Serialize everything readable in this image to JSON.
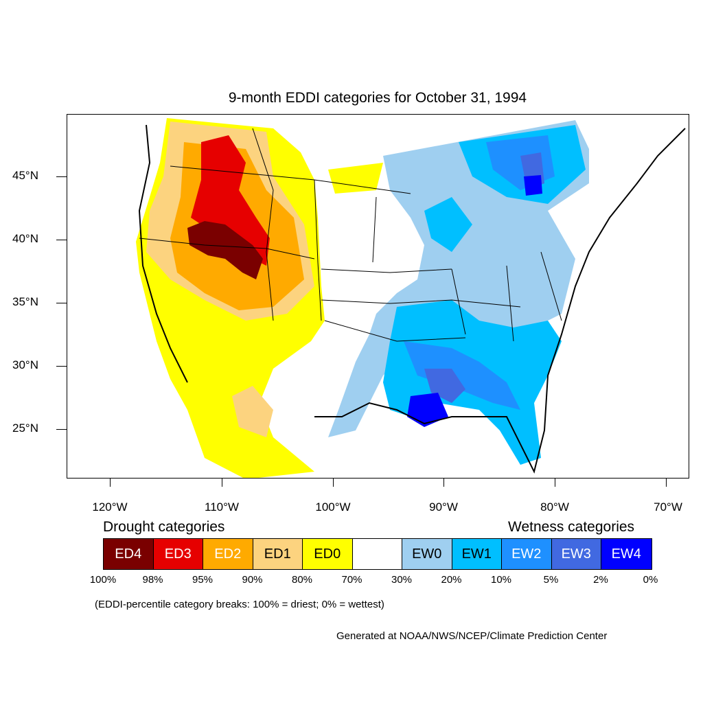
{
  "title": "9-month EDDI categories for October 31, 1994",
  "lat_labels": [
    "45°N",
    "40°N",
    "35°N",
    "30°N",
    "25°N"
  ],
  "lon_labels": [
    "120°W",
    "110°W",
    "100°W",
    "90°W",
    "80°W",
    "70°W"
  ],
  "legend": {
    "drought_heading": "Drought categories",
    "wetness_heading": "Wetness categories",
    "categories": [
      {
        "label": "ED4",
        "color": "#7a0000",
        "text_color": "#ffffff"
      },
      {
        "label": "ED3",
        "color": "#e60000",
        "text_color": "#ffffff"
      },
      {
        "label": "ED2",
        "color": "#ffaa00",
        "text_color": "#ffffff"
      },
      {
        "label": "ED1",
        "color": "#fcd37f",
        "text_color": "#000000"
      },
      {
        "label": "ED0",
        "color": "#ffff00",
        "text_color": "#000000"
      },
      {
        "label": "",
        "color": "#ffffff",
        "text_color": "#000000"
      },
      {
        "label": "EW0",
        "color": "#9fcff0",
        "text_color": "#000000"
      },
      {
        "label": "EW1",
        "color": "#00bfff",
        "text_color": "#000000"
      },
      {
        "label": "EW2",
        "color": "#1e90ff",
        "text_color": "#ffffff"
      },
      {
        "label": "EW3",
        "color": "#4169e1",
        "text_color": "#ffffff"
      },
      {
        "label": "EW4",
        "color": "#0000ff",
        "text_color": "#ffffff"
      }
    ],
    "percentiles": [
      "100%",
      "98%",
      "95%",
      "90%",
      "80%",
      "70%",
      "30%",
      "20%",
      "10%",
      "5%",
      "2%",
      "0%"
    ]
  },
  "note": "(EDDI-percentile category breaks: 100% = driest; 0% = wettest)",
  "credit": "Generated at NOAA/NWS/NCEP/Climate Prediction Center"
}
